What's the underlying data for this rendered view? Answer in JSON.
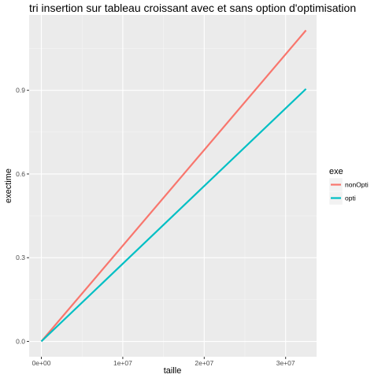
{
  "chart_data": {
    "type": "line",
    "title": "tri insertion sur tableau croissant avec et sans option d'optimisation",
    "xlabel": "taille",
    "ylabel": "exectime",
    "xlim": [
      -1500000,
      33800000
    ],
    "ylim": [
      -0.055,
      1.17
    ],
    "x_ticks": [
      0,
      10000000,
      20000000,
      30000000
    ],
    "x_tick_labels": [
      "0e+00",
      "1e+07",
      "2e+07",
      "3e+07"
    ],
    "y_ticks": [
      0.0,
      0.3,
      0.6,
      0.9
    ],
    "y_tick_labels": [
      "0.0",
      "0.3",
      "0.6",
      "0.9"
    ],
    "grid": true,
    "background": "#ebebeb",
    "legend": {
      "title": "exe",
      "placement": "right"
    },
    "series": [
      {
        "name": "nonOpti",
        "color": "#f8766d",
        "x": [
          0,
          32500000
        ],
        "y": [
          0.0,
          1.115
        ]
      },
      {
        "name": "opti",
        "color": "#00bfc4",
        "x": [
          0,
          32500000
        ],
        "y": [
          0.0,
          0.905
        ]
      }
    ]
  }
}
